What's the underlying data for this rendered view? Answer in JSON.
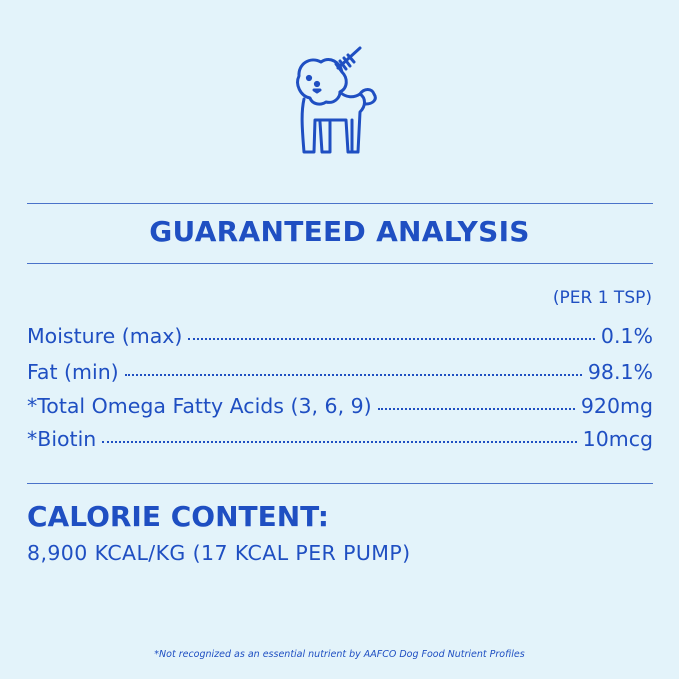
{
  "icon": "dog-grooming-brush-icon",
  "colors": {
    "background": "#e3f3fa",
    "text": "#1f4fc2"
  },
  "title": "GUARANTEED ANALYSIS",
  "per_unit": "(PER 1 TSP)",
  "rows": [
    {
      "label": "Moisture (max)",
      "value": "0.1%"
    },
    {
      "label": "Fat (min)",
      "value": "98.1%"
    },
    {
      "label": "*Total Omega Fatty Acids (3, 6, 9)",
      "value": "920mg"
    },
    {
      "label": "*Biotin",
      "value": "10mcg"
    }
  ],
  "calorie": {
    "heading": "CALORIE CONTENT:",
    "value": "8,900 KCAL/KG (17 KCAL PER PUMP)"
  },
  "footnote": "*Not recognized as an essential nutrient by AAFCO Dog Food Nutrient Profiles"
}
